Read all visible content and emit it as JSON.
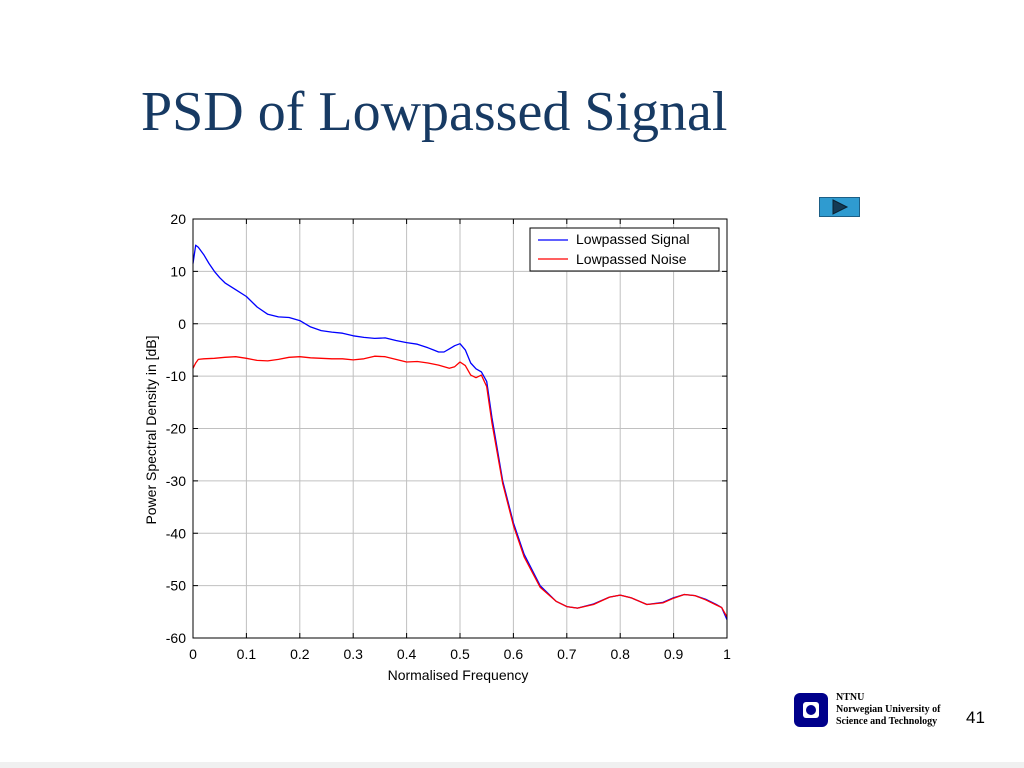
{
  "slide": {
    "title": "PSD of Lowpassed Signal",
    "page_number": "41"
  },
  "footer": {
    "org_short": "NTNU",
    "org_line1": "Norwegian University of",
    "org_line2": "Science and Technology",
    "logo_icon": "ntnu-logo-icon",
    "logo_color": "#00008b"
  },
  "nav": {
    "next_icon": "play-arrow-icon",
    "color": "#2f9bd0"
  },
  "chart_data": {
    "type": "line",
    "xlabel": "Normalised Frequency",
    "ylabel": "Power Spectral Density in [dB]",
    "xlim": [
      0,
      1
    ],
    "ylim": [
      -60,
      20
    ],
    "xticks": [
      "0",
      "0.1",
      "0.2",
      "0.3",
      "0.4",
      "0.5",
      "0.6",
      "0.7",
      "0.8",
      "0.9",
      "1"
    ],
    "yticks": [
      "20",
      "10",
      "0",
      "-10",
      "-20",
      "-30",
      "-40",
      "-50",
      "-60"
    ],
    "grid": true,
    "legend_position": "top-right",
    "series": [
      {
        "name": "Lowpassed Signal",
        "color": "#0000ff",
        "x": [
          0,
          0.005,
          0.01,
          0.02,
          0.03,
          0.04,
          0.05,
          0.06,
          0.08,
          0.1,
          0.12,
          0.14,
          0.16,
          0.18,
          0.2,
          0.22,
          0.24,
          0.26,
          0.28,
          0.3,
          0.32,
          0.34,
          0.36,
          0.38,
          0.4,
          0.42,
          0.44,
          0.45,
          0.46,
          0.47,
          0.48,
          0.49,
          0.5,
          0.51,
          0.52,
          0.53,
          0.54,
          0.55,
          0.56,
          0.58,
          0.6,
          0.62,
          0.65,
          0.68,
          0.7,
          0.72,
          0.75,
          0.78,
          0.8,
          0.82,
          0.85,
          0.88,
          0.9,
          0.92,
          0.94,
          0.96,
          0.98,
          0.99,
          1.0
        ],
        "y": [
          11.5,
          15,
          14.6,
          13.2,
          11.5,
          10,
          8.8,
          7.8,
          6.5,
          5.2,
          3.2,
          1.8,
          1.3,
          1.2,
          0.6,
          -0.6,
          -1.3,
          -1.6,
          -1.8,
          -2.3,
          -2.6,
          -2.8,
          -2.7,
          -3.2,
          -3.6,
          -3.9,
          -4.6,
          -5.0,
          -5.4,
          -5.4,
          -4.8,
          -4.2,
          -3.8,
          -5.0,
          -7.5,
          -8.6,
          -9.2,
          -11,
          -18,
          -30,
          -38,
          -44,
          -50,
          -53,
          -54,
          -54.3,
          -53.5,
          -52.2,
          -51.8,
          -52.3,
          -53.6,
          -53.2,
          -52.3,
          -51.7,
          -51.9,
          -52.6,
          -53.6,
          -54.2,
          -56.5
        ]
      },
      {
        "name": "Lowpassed Noise",
        "color": "#ff0000",
        "x": [
          0,
          0.005,
          0.01,
          0.02,
          0.04,
          0.06,
          0.08,
          0.1,
          0.12,
          0.14,
          0.16,
          0.18,
          0.2,
          0.22,
          0.24,
          0.26,
          0.28,
          0.3,
          0.32,
          0.34,
          0.36,
          0.38,
          0.4,
          0.42,
          0.44,
          0.46,
          0.48,
          0.49,
          0.5,
          0.51,
          0.52,
          0.53,
          0.54,
          0.55,
          0.56,
          0.58,
          0.6,
          0.62,
          0.65,
          0.68,
          0.7,
          0.72,
          0.75,
          0.78,
          0.8,
          0.82,
          0.85,
          0.88,
          0.9,
          0.92,
          0.94,
          0.96,
          0.98,
          0.99,
          1.0
        ],
        "y": [
          -8.5,
          -7.5,
          -6.8,
          -6.7,
          -6.6,
          -6.4,
          -6.3,
          -6.6,
          -7.0,
          -7.1,
          -6.8,
          -6.4,
          -6.3,
          -6.5,
          -6.6,
          -6.7,
          -6.7,
          -6.9,
          -6.7,
          -6.2,
          -6.3,
          -6.8,
          -7.3,
          -7.2,
          -7.5,
          -7.9,
          -8.5,
          -8.2,
          -7.3,
          -8.0,
          -9.8,
          -10.3,
          -9.8,
          -12,
          -19,
          -30.5,
          -38.5,
          -44.5,
          -50.3,
          -53,
          -54,
          -54.3,
          -53.6,
          -52.2,
          -51.8,
          -52.3,
          -53.6,
          -53.3,
          -52.4,
          -51.7,
          -51.9,
          -52.7,
          -53.7,
          -54.2,
          -56
        ]
      }
    ]
  }
}
